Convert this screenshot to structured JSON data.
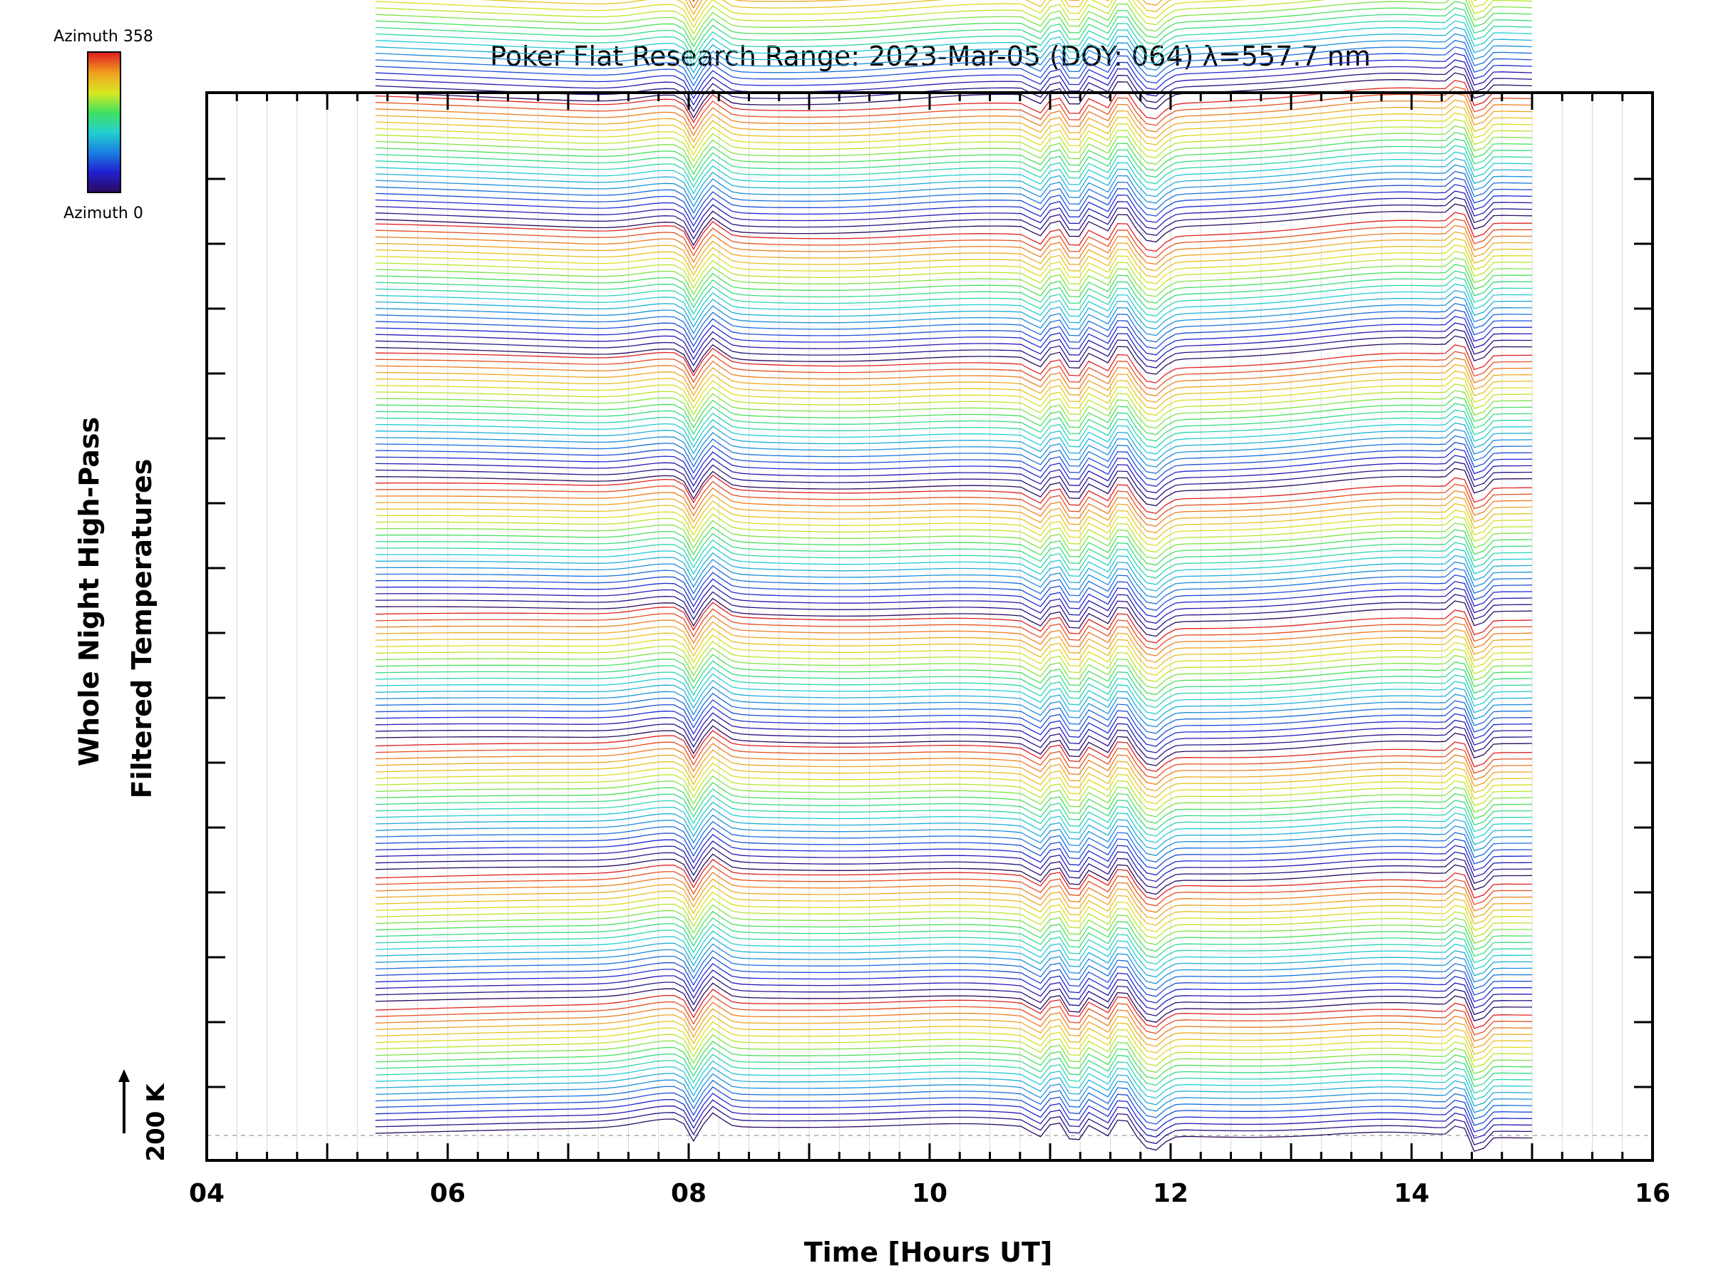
{
  "chart_data": {
    "type": "line",
    "title": "Poker Flat Research Range: 2023-Mar-05 (DOY: 064) λ=557.7 nm",
    "xlabel": "Time [Hours UT]",
    "ylabel_line1": "Whole Night High-Pass",
    "ylabel_line2": "Filtered Temperatures",
    "x_ticks": [
      "04",
      "06",
      "08",
      "10",
      "12",
      "14",
      "16"
    ],
    "xlim": [
      4,
      16
    ],
    "x_start": 5.4,
    "x_end": 15.0,
    "trace_count": 180,
    "scale_bar_label": "200 K",
    "colorbar": {
      "top_label": "Azimuth 358",
      "bottom_label": "Azimuth 0",
      "azimuth_min": 0,
      "azimuth_max": 358
    },
    "events_hours_ut": [
      8.0,
      8.2,
      10.9,
      11.2,
      11.6,
      14.4
    ],
    "grid": "vertical",
    "colors": {
      "colormap": [
        "#2a0a5e",
        "#2020d0",
        "#1a7fe0",
        "#22d0d0",
        "#40e060",
        "#d8e820",
        "#f0a020",
        "#e02020"
      ]
    }
  }
}
